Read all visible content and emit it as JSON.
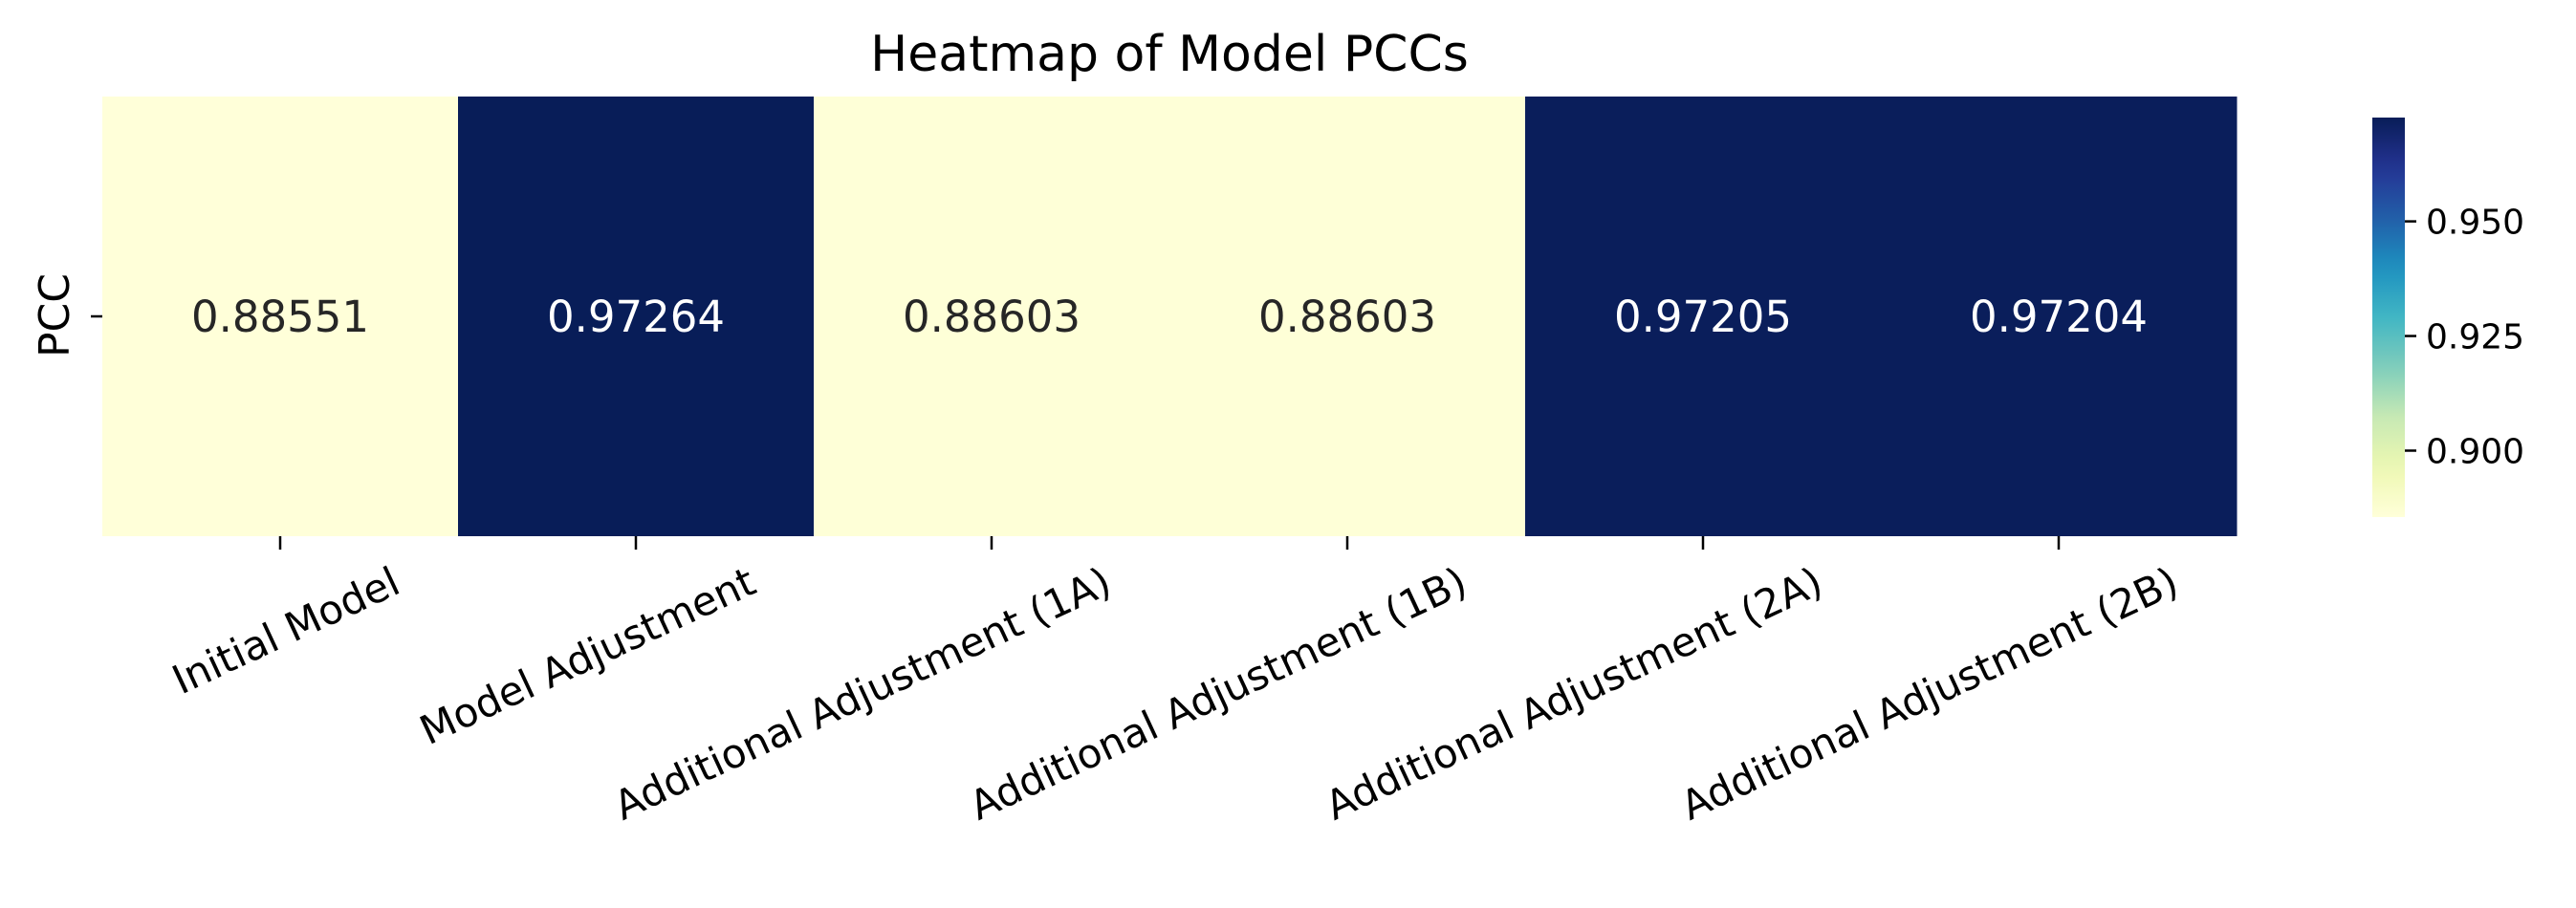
{
  "chart_data": {
    "type": "heatmap",
    "title": "Heatmap of Model PCCs",
    "ylabel": "PCC",
    "xlabel": "",
    "rows": [
      "PCC"
    ],
    "columns": [
      "Initial Model",
      "Model Adjustment",
      "Additional Adjustment (1A)",
      "Additional Adjustment (1B)",
      "Additional Adjustment (2A)",
      "Additional Adjustment (2B)"
    ],
    "values": [
      [
        0.88551,
        0.97264,
        0.88603,
        0.88603,
        0.97205,
        0.97204
      ]
    ],
    "value_labels": [
      [
        "0.88551",
        "0.97264",
        "0.88603",
        "0.88603",
        "0.97205",
        "0.97204"
      ]
    ],
    "colormap": "YlGnBu",
    "vmin": 0.88551,
    "vmax": 0.97264,
    "colorbar": {
      "ticks": [
        0.9,
        0.925,
        0.95
      ],
      "tick_labels": [
        "0.900",
        "0.925",
        "0.950"
      ]
    },
    "colors": {
      "low": "#ffffd9",
      "high": "#081d58",
      "light_text": "#ffffff",
      "dark_text": "#262626"
    }
  }
}
